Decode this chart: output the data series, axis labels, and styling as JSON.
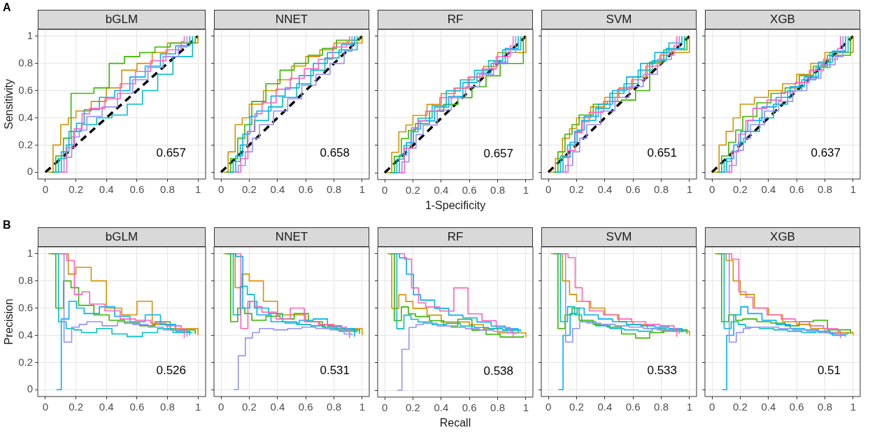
{
  "chart_data": [
    {
      "type": "step",
      "title": "bGLM",
      "ylabel": "Sensitivity",
      "annotations": [
        "A",
        "0.657"
      ],
      "xlim": [
        -0.05,
        1.05
      ],
      "ylim": [
        -0.05,
        1.05
      ],
      "xticks": [
        0,
        0.2,
        0.4,
        0.6,
        0.8,
        1
      ],
      "yticks": [
        0,
        0.2,
        0.4,
        0.6,
        0.8,
        1
      ],
      "grid": true,
      "legend": false,
      "series": [
        {
          "type": "line",
          "line_style": "dashed",
          "color": "#000000",
          "x": [
            0,
            1
          ],
          "values": [
            0,
            1
          ]
        },
        {
          "color": "#D89000",
          "x": [
            0.018,
            0.05,
            0.1,
            0.15,
            0.2,
            0.3,
            0.4,
            0.5,
            0.6,
            0.7,
            0.8,
            1
          ],
          "values": [
            0,
            0.2,
            0.35,
            0.4,
            0.45,
            0.52,
            0.62,
            0.75,
            0.8,
            0.88,
            0.95,
            1
          ]
        },
        {
          "color": "#39B600",
          "x": [
            0.036,
            0.068,
            0.118,
            0.168,
            0.218,
            0.318,
            0.418,
            0.518,
            0.618,
            0.718,
            0.818,
            0.982
          ],
          "values": [
            0,
            0.12,
            0.25,
            0.58,
            0.58,
            0.62,
            0.8,
            0.85,
            0.88,
            0.92,
            0.95,
            1
          ]
        },
        {
          "color": "#00BFC4",
          "x": [
            0.054,
            0.086,
            0.136,
            0.186,
            0.236,
            0.336,
            0.436,
            0.536,
            0.636,
            0.736,
            0.836,
            0.964
          ],
          "values": [
            0,
            0.1,
            0.2,
            0.3,
            0.35,
            0.4,
            0.42,
            0.5,
            0.6,
            0.72,
            0.85,
            1
          ]
        },
        {
          "color": "#00B0F6",
          "x": [
            0.072,
            0.104,
            0.154,
            0.204,
            0.254,
            0.354,
            0.454,
            0.554,
            0.654,
            0.754,
            0.854,
            0.946
          ],
          "values": [
            0,
            0.15,
            0.3,
            0.36,
            0.46,
            0.55,
            0.6,
            0.7,
            0.78,
            0.87,
            0.93,
            1
          ]
        },
        {
          "color": "#9590FF",
          "x": [
            0.09,
            0.122,
            0.172,
            0.222,
            0.272,
            0.372,
            0.472,
            0.572,
            0.672,
            0.772,
            0.872,
            0.928
          ],
          "values": [
            0,
            0.11,
            0.26,
            0.31,
            0.41,
            0.48,
            0.58,
            0.68,
            0.77,
            0.85,
            0.92,
            1
          ]
        },
        {
          "color": "#FF62BC",
          "x": [
            0.108,
            0.14,
            0.19,
            0.24,
            0.29,
            0.39,
            0.49,
            0.59,
            0.69,
            0.79,
            0.89,
            0.91
          ],
          "values": [
            0,
            0.18,
            0.32,
            0.43,
            0.47,
            0.54,
            0.65,
            0.74,
            0.82,
            0.9,
            0.96,
            1
          ]
        }
      ]
    },
    {
      "type": "step",
      "title": "NNET",
      "tick_labels": "x",
      "annotations": [
        "0.658"
      ],
      "xlim": [
        -0.05,
        1.05
      ],
      "ylim": [
        -0.05,
        1.05
      ],
      "xticks": [
        0,
        0.2,
        0.4,
        0.6,
        0.8,
        1
      ],
      "yticks": [
        0,
        0.2,
        0.4,
        0.6,
        0.8,
        1
      ],
      "grid": true,
      "legend": false,
      "series": [
        {
          "type": "line",
          "line_style": "dashed",
          "color": "#000000",
          "x": [
            0,
            1
          ],
          "values": [
            0,
            1
          ]
        },
        {
          "color": "#D89000",
          "x": [
            0.018,
            0.05,
            0.1,
            0.15,
            0.2,
            0.3,
            0.4,
            0.5,
            0.6,
            0.7,
            0.8,
            1
          ],
          "values": [
            0,
            0.15,
            0.35,
            0.4,
            0.5,
            0.6,
            0.68,
            0.78,
            0.85,
            0.9,
            0.95,
            1
          ]
        },
        {
          "color": "#39B600",
          "x": [
            0.036,
            0.068,
            0.118,
            0.168,
            0.218,
            0.318,
            0.418,
            0.518,
            0.618,
            0.718,
            0.818,
            0.982
          ],
          "values": [
            0,
            0.1,
            0.25,
            0.35,
            0.52,
            0.65,
            0.75,
            0.8,
            0.86,
            0.91,
            0.97,
            1
          ]
        },
        {
          "color": "#00BFC4",
          "x": [
            0.054,
            0.086,
            0.136,
            0.186,
            0.236,
            0.336,
            0.436,
            0.536,
            0.636,
            0.736,
            0.836,
            0.964
          ],
          "values": [
            0,
            0.08,
            0.2,
            0.3,
            0.38,
            0.48,
            0.55,
            0.65,
            0.75,
            0.84,
            0.9,
            1
          ]
        },
        {
          "color": "#00B0F6",
          "x": [
            0.072,
            0.104,
            0.154,
            0.204,
            0.254,
            0.354,
            0.454,
            0.554,
            0.654,
            0.754,
            0.854,
            0.946
          ],
          "values": [
            0,
            0.12,
            0.28,
            0.41,
            0.45,
            0.56,
            0.62,
            0.71,
            0.8,
            0.88,
            0.94,
            1
          ]
        },
        {
          "color": "#9590FF",
          "x": [
            0.09,
            0.122,
            0.172,
            0.222,
            0.272,
            0.372,
            0.472,
            0.572,
            0.672,
            0.772,
            0.872,
            0.928
          ],
          "values": [
            0,
            0.05,
            0.15,
            0.25,
            0.35,
            0.45,
            0.54,
            0.64,
            0.72,
            0.8,
            0.89,
            1
          ]
        },
        {
          "color": "#FF62BC",
          "x": [
            0.108,
            0.14,
            0.19,
            0.24,
            0.29,
            0.39,
            0.49,
            0.59,
            0.69,
            0.79,
            0.89,
            0.91
          ],
          "values": [
            0,
            0.1,
            0.3,
            0.43,
            0.51,
            0.61,
            0.69,
            0.76,
            0.83,
            0.92,
            0.96,
            1
          ]
        }
      ]
    },
    {
      "type": "step",
      "title": "RF",
      "tick_labels": "x",
      "xlabel": "1-Specificity",
      "annotations": [
        "0.657"
      ],
      "xlim": [
        -0.05,
        1.05
      ],
      "ylim": [
        -0.05,
        1.05
      ],
      "xticks": [
        0,
        0.2,
        0.4,
        0.6,
        0.8,
        1
      ],
      "yticks": [
        0,
        0.2,
        0.4,
        0.6,
        0.8,
        1
      ],
      "grid": true,
      "legend": false,
      "series": [
        {
          "type": "line",
          "line_style": "dashed",
          "color": "#000000",
          "x": [
            0,
            1
          ],
          "values": [
            0,
            1
          ]
        },
        {
          "color": "#D89000",
          "x": [
            0.018,
            0.05,
            0.1,
            0.15,
            0.2,
            0.3,
            0.4,
            0.5,
            0.6,
            0.7,
            0.8,
            1
          ],
          "values": [
            0,
            0.15,
            0.3,
            0.35,
            0.42,
            0.5,
            0.58,
            0.62,
            0.7,
            0.78,
            0.88,
            1
          ]
        },
        {
          "color": "#39B600",
          "x": [
            0.036,
            0.068,
            0.118,
            0.168,
            0.218,
            0.318,
            0.418,
            0.518,
            0.618,
            0.718,
            0.818,
            0.982
          ],
          "values": [
            0,
            0.12,
            0.25,
            0.31,
            0.36,
            0.45,
            0.5,
            0.55,
            0.63,
            0.71,
            0.8,
            1
          ]
        },
        {
          "color": "#00BFC4",
          "x": [
            0.054,
            0.086,
            0.136,
            0.186,
            0.236,
            0.336,
            0.436,
            0.536,
            0.636,
            0.736,
            0.836,
            0.964
          ],
          "values": [
            0,
            0.1,
            0.2,
            0.3,
            0.4,
            0.49,
            0.6,
            0.68,
            0.75,
            0.82,
            0.9,
            1
          ]
        },
        {
          "color": "#00B0F6",
          "x": [
            0.072,
            0.104,
            0.154,
            0.204,
            0.254,
            0.354,
            0.454,
            0.554,
            0.654,
            0.754,
            0.854,
            0.946
          ],
          "values": [
            0,
            0.13,
            0.22,
            0.32,
            0.38,
            0.48,
            0.56,
            0.66,
            0.73,
            0.8,
            0.91,
            1
          ]
        },
        {
          "color": "#9590FF",
          "x": [
            0.09,
            0.122,
            0.172,
            0.222,
            0.272,
            0.372,
            0.472,
            0.572,
            0.672,
            0.772,
            0.872,
            0.928
          ],
          "values": [
            0,
            0.08,
            0.18,
            0.28,
            0.35,
            0.46,
            0.55,
            0.63,
            0.72,
            0.81,
            0.88,
            1
          ]
        },
        {
          "color": "#FF62BC",
          "x": [
            0.108,
            0.14,
            0.19,
            0.24,
            0.29,
            0.39,
            0.49,
            0.59,
            0.69,
            0.79,
            0.89,
            0.91
          ],
          "values": [
            0,
            0.18,
            0.33,
            0.38,
            0.45,
            0.55,
            0.62,
            0.7,
            0.76,
            0.85,
            0.93,
            1
          ]
        }
      ]
    },
    {
      "type": "step",
      "title": "SVM",
      "tick_labels": "x",
      "annotations": [
        "0.651"
      ],
      "xlim": [
        -0.05,
        1.05
      ],
      "ylim": [
        -0.05,
        1.05
      ],
      "xticks": [
        0,
        0.2,
        0.4,
        0.6,
        0.8,
        1
      ],
      "yticks": [
        0,
        0.2,
        0.4,
        0.6,
        0.8,
        1
      ],
      "grid": true,
      "legend": false,
      "series": [
        {
          "type": "line",
          "line_style": "dashed",
          "color": "#000000",
          "x": [
            0,
            1
          ],
          "values": [
            0,
            1
          ]
        },
        {
          "color": "#D89000",
          "x": [
            0.018,
            0.05,
            0.1,
            0.15,
            0.2,
            0.3,
            0.4,
            0.5,
            0.6,
            0.7,
            0.8,
            1
          ],
          "values": [
            0,
            0.1,
            0.25,
            0.32,
            0.4,
            0.48,
            0.55,
            0.62,
            0.7,
            0.8,
            0.88,
            1
          ]
        },
        {
          "color": "#39B600",
          "x": [
            0.036,
            0.068,
            0.118,
            0.168,
            0.218,
            0.318,
            0.418,
            0.518,
            0.618,
            0.718,
            0.818,
            0.982
          ],
          "values": [
            0,
            0.15,
            0.28,
            0.35,
            0.42,
            0.5,
            0.52,
            0.53,
            0.6,
            0.81,
            0.9,
            1
          ]
        },
        {
          "color": "#00BFC4",
          "x": [
            0.054,
            0.086,
            0.136,
            0.186,
            0.236,
            0.336,
            0.436,
            0.536,
            0.636,
            0.736,
            0.836,
            0.964
          ],
          "values": [
            0,
            0.12,
            0.2,
            0.3,
            0.38,
            0.47,
            0.58,
            0.65,
            0.75,
            0.82,
            0.91,
            1
          ]
        },
        {
          "color": "#00B0F6",
          "x": [
            0.072,
            0.104,
            0.154,
            0.204,
            0.254,
            0.354,
            0.454,
            0.554,
            0.654,
            0.754,
            0.854,
            0.946
          ],
          "values": [
            0,
            0.11,
            0.22,
            0.31,
            0.41,
            0.5,
            0.6,
            0.7,
            0.8,
            0.88,
            0.95,
            1
          ]
        },
        {
          "color": "#9590FF",
          "x": [
            0.09,
            0.122,
            0.172,
            0.222,
            0.272,
            0.372,
            0.472,
            0.572,
            0.672,
            0.772,
            0.872,
            0.928
          ],
          "values": [
            0,
            0.05,
            0.15,
            0.25,
            0.35,
            0.45,
            0.55,
            0.63,
            0.72,
            0.83,
            0.9,
            1
          ]
        },
        {
          "color": "#FF62BC",
          "x": [
            0.108,
            0.14,
            0.19,
            0.24,
            0.29,
            0.39,
            0.49,
            0.59,
            0.69,
            0.79,
            0.89,
            0.91
          ],
          "values": [
            0,
            0.16,
            0.29,
            0.37,
            0.44,
            0.52,
            0.61,
            0.68,
            0.78,
            0.86,
            0.93,
            1
          ]
        }
      ]
    },
    {
      "type": "step",
      "title": "XGB",
      "tick_labels": "x",
      "annotations": [
        "0.637"
      ],
      "xlim": [
        -0.05,
        1.05
      ],
      "ylim": [
        -0.05,
        1.05
      ],
      "xticks": [
        0,
        0.2,
        0.4,
        0.6,
        0.8,
        1
      ],
      "yticks": [
        0,
        0.2,
        0.4,
        0.6,
        0.8,
        1
      ],
      "grid": true,
      "legend": false,
      "series": [
        {
          "type": "line",
          "line_style": "dashed",
          "color": "#000000",
          "x": [
            0,
            1
          ],
          "values": [
            0,
            1
          ]
        },
        {
          "color": "#D89000",
          "x": [
            0.018,
            0.05,
            0.1,
            0.15,
            0.2,
            0.3,
            0.4,
            0.5,
            0.6,
            0.7,
            0.8,
            1
          ],
          "values": [
            0,
            0.2,
            0.3,
            0.4,
            0.5,
            0.55,
            0.6,
            0.65,
            0.72,
            0.8,
            0.88,
            1
          ]
        },
        {
          "color": "#39B600",
          "x": [
            0.036,
            0.068,
            0.118,
            0.168,
            0.218,
            0.318,
            0.418,
            0.518,
            0.618,
            0.718,
            0.818,
            0.982
          ],
          "values": [
            0,
            0.12,
            0.22,
            0.31,
            0.41,
            0.51,
            0.58,
            0.62,
            0.71,
            0.78,
            0.86,
            1
          ]
        },
        {
          "color": "#00BFC4",
          "x": [
            0.054,
            0.086,
            0.136,
            0.186,
            0.236,
            0.336,
            0.436,
            0.536,
            0.636,
            0.736,
            0.836,
            0.964
          ],
          "values": [
            0,
            0.08,
            0.15,
            0.22,
            0.3,
            0.4,
            0.5,
            0.6,
            0.68,
            0.77,
            0.88,
            1
          ]
        },
        {
          "color": "#00B0F6",
          "x": [
            0.072,
            0.104,
            0.154,
            0.204,
            0.254,
            0.354,
            0.454,
            0.554,
            0.654,
            0.754,
            0.854,
            0.946
          ],
          "values": [
            0,
            0.1,
            0.2,
            0.3,
            0.38,
            0.48,
            0.55,
            0.63,
            0.7,
            0.81,
            0.89,
            1
          ]
        },
        {
          "color": "#9590FF",
          "x": [
            0.09,
            0.122,
            0.172,
            0.222,
            0.272,
            0.372,
            0.472,
            0.572,
            0.672,
            0.772,
            0.872,
            0.928
          ],
          "values": [
            0,
            0.05,
            0.16,
            0.25,
            0.35,
            0.45,
            0.52,
            0.6,
            0.69,
            0.79,
            0.85,
            1
          ]
        },
        {
          "color": "#FF62BC",
          "x": [
            0.108,
            0.14,
            0.19,
            0.24,
            0.29,
            0.39,
            0.49,
            0.59,
            0.69,
            0.79,
            0.89,
            0.91
          ],
          "values": [
            0,
            0.15,
            0.28,
            0.38,
            0.47,
            0.53,
            0.59,
            0.66,
            0.75,
            0.83,
            0.91,
            1
          ]
        }
      ]
    },
    {
      "type": "step",
      "title": "bGLM",
      "ylabel": "Precision",
      "annotations": [
        "B",
        "0.526"
      ],
      "xlim": [
        -0.05,
        1.05
      ],
      "ylim": [
        -0.05,
        1.05
      ],
      "xticks": [
        0,
        0.2,
        0.4,
        0.6,
        0.8,
        1
      ],
      "yticks": [
        0,
        0.2,
        0.4,
        0.6,
        0.8,
        1
      ],
      "grid": true,
      "legend": false,
      "series": [
        {
          "color": "#D89000",
          "x": [
            0.018,
            0.05,
            0.1,
            0.15,
            0.2,
            0.3,
            0.4,
            0.5,
            0.6,
            0.7,
            0.8,
            1
          ],
          "values": [
            1,
            1,
            1,
            0.85,
            0.9,
            0.8,
            0.6,
            0.55,
            0.65,
            0.48,
            0.45,
            0.4
          ]
        },
        {
          "color": "#39B600",
          "x": [
            0.036,
            0.068,
            0.118,
            0.168,
            0.218,
            0.318,
            0.418,
            0.518,
            0.618,
            0.718,
            0.818,
            0.982
          ],
          "values": [
            1,
            0.6,
            0.8,
            0.75,
            0.62,
            0.55,
            0.51,
            0.49,
            0.47,
            0.5,
            0.44,
            0.41
          ]
        },
        {
          "color": "#00BFC4",
          "x": [
            0.054,
            0.086,
            0.136,
            0.186,
            0.236,
            0.336,
            0.436,
            0.536,
            0.636,
            0.736,
            0.836,
            0.964
          ],
          "values": [
            1,
            0.5,
            0.45,
            0.44,
            0.42,
            0.45,
            0.41,
            0.39,
            0.42,
            0.45,
            0.42,
            0.42
          ]
        },
        {
          "color": "#00B0F6",
          "x": [
            0.072,
            0.104,
            0.154,
            0.204,
            0.254,
            0.354,
            0.454,
            0.554,
            0.654,
            0.754,
            0.854,
            0.946
          ],
          "values": [
            0,
            0.52,
            0.65,
            0.6,
            0.56,
            0.61,
            0.54,
            0.5,
            0.55,
            0.48,
            0.43,
            0.4
          ]
        },
        {
          "color": "#9590FF",
          "x": [
            0.09,
            0.122,
            0.172,
            0.222,
            0.272,
            0.372,
            0.472,
            0.572,
            0.672,
            0.772,
            0.872,
            0.928
          ],
          "values": [
            1,
            0.35,
            0.46,
            0.48,
            0.5,
            0.47,
            0.5,
            0.48,
            0.46,
            0.44,
            0.43,
            0.39
          ]
        },
        {
          "color": "#FF62BC",
          "x": [
            0.108,
            0.14,
            0.19,
            0.24,
            0.29,
            0.39,
            0.49,
            0.59,
            0.69,
            0.79,
            0.89,
            0.91
          ],
          "values": [
            1,
            0.95,
            0.7,
            0.72,
            0.63,
            0.58,
            0.52,
            0.51,
            0.49,
            0.47,
            0.45,
            0.38
          ]
        }
      ]
    },
    {
      "type": "step",
      "title": "NNET",
      "tick_labels": "x",
      "annotations": [
        "0.531"
      ],
      "xlim": [
        -0.05,
        1.05
      ],
      "ylim": [
        -0.05,
        1.05
      ],
      "xticks": [
        0,
        0.2,
        0.4,
        0.6,
        0.8,
        1
      ],
      "yticks": [
        0,
        0.2,
        0.4,
        0.6,
        0.8,
        1
      ],
      "grid": true,
      "legend": false,
      "series": [
        {
          "color": "#D89000",
          "x": [
            0.018,
            0.05,
            0.1,
            0.15,
            0.2,
            0.3,
            0.4,
            0.5,
            0.6,
            0.7,
            0.8,
            1
          ],
          "values": [
            1,
            1,
            0.75,
            0.85,
            0.8,
            0.65,
            0.55,
            0.55,
            0.5,
            0.48,
            0.45,
            0.4
          ]
        },
        {
          "color": "#39B600",
          "x": [
            0.036,
            0.068,
            0.118,
            0.168,
            0.218,
            0.318,
            0.418,
            0.518,
            0.618,
            0.718,
            0.818,
            0.982
          ],
          "values": [
            1,
            0.5,
            0.6,
            0.56,
            0.51,
            0.54,
            0.52,
            0.56,
            0.5,
            0.46,
            0.44,
            0.41
          ]
        },
        {
          "color": "#00BFC4",
          "x": [
            0.054,
            0.086,
            0.136,
            0.186,
            0.236,
            0.336,
            0.436,
            0.536,
            0.636,
            0.736,
            0.836,
            0.964
          ],
          "values": [
            1,
            0.55,
            0.76,
            0.7,
            0.6,
            0.56,
            0.5,
            0.48,
            0.47,
            0.45,
            0.43,
            0.42
          ]
        },
        {
          "color": "#00B0F6",
          "x": [
            0.072,
            0.104,
            0.154,
            0.204,
            0.254,
            0.354,
            0.454,
            0.554,
            0.654,
            0.754,
            0.854,
            0.946
          ],
          "values": [
            1,
            0.98,
            0.6,
            0.65,
            0.55,
            0.5,
            0.49,
            0.51,
            0.52,
            0.47,
            0.45,
            0.39
          ]
        },
        {
          "color": "#9590FF",
          "x": [
            0.09,
            0.122,
            0.172,
            0.222,
            0.272,
            0.372,
            0.472,
            0.572,
            0.672,
            0.772,
            0.872,
            0.928
          ],
          "values": [
            0,
            0.25,
            0.38,
            0.42,
            0.45,
            0.44,
            0.45,
            0.46,
            0.45,
            0.44,
            0.41,
            0.4
          ]
        },
        {
          "color": "#FF62BC",
          "x": [
            0.108,
            0.14,
            0.19,
            0.24,
            0.29,
            0.39,
            0.49,
            0.59,
            0.69,
            0.79,
            0.89,
            0.91
          ],
          "values": [
            1,
            0.45,
            0.65,
            0.61,
            0.57,
            0.52,
            0.6,
            0.5,
            0.48,
            0.46,
            0.44,
            0.38
          ]
        }
      ]
    },
    {
      "type": "step",
      "title": "RF",
      "tick_labels": "x",
      "xlabel": "Recall",
      "annotations": [
        "0.538"
      ],
      "xlim": [
        -0.05,
        1.05
      ],
      "ylim": [
        -0.05,
        1.05
      ],
      "xticks": [
        0,
        0.2,
        0.4,
        0.6,
        0.8,
        1
      ],
      "yticks": [
        0,
        0.2,
        0.4,
        0.6,
        0.8,
        1
      ],
      "grid": true,
      "legend": false,
      "series": [
        {
          "color": "#D89000",
          "x": [
            0.018,
            0.05,
            0.1,
            0.15,
            0.2,
            0.3,
            0.4,
            0.5,
            0.6,
            0.7,
            0.8,
            1
          ],
          "values": [
            1,
            0.6,
            0.7,
            0.65,
            0.6,
            0.55,
            0.5,
            0.5,
            0.48,
            0.45,
            0.42,
            0.39
          ]
        },
        {
          "color": "#39B600",
          "x": [
            0.036,
            0.068,
            0.118,
            0.168,
            0.218,
            0.318,
            0.418,
            0.518,
            0.618,
            0.718,
            0.818,
            0.982
          ],
          "values": [
            1,
            0.51,
            0.61,
            0.56,
            0.54,
            0.51,
            0.47,
            0.52,
            0.44,
            0.41,
            0.39,
            0.4
          ]
        },
        {
          "color": "#00BFC4",
          "x": [
            0.054,
            0.086,
            0.136,
            0.186,
            0.236,
            0.336,
            0.436,
            0.536,
            0.636,
            0.736,
            0.836,
            0.964
          ],
          "values": [
            1,
            0.45,
            0.55,
            0.52,
            0.5,
            0.48,
            0.49,
            0.47,
            0.46,
            0.45,
            0.44,
            0.43
          ]
        },
        {
          "color": "#00B0F6",
          "x": [
            0.072,
            0.104,
            0.154,
            0.204,
            0.254,
            0.354,
            0.454,
            0.554,
            0.654,
            0.754,
            0.854,
            0.946
          ],
          "values": [
            1,
            0.97,
            0.85,
            0.7,
            0.66,
            0.6,
            0.55,
            0.53,
            0.5,
            0.47,
            0.45,
            0.42
          ]
        },
        {
          "color": "#9590FF",
          "x": [
            0.09,
            0.122,
            0.172,
            0.222,
            0.272,
            0.372,
            0.472,
            0.572,
            0.672,
            0.772,
            0.872,
            0.928
          ],
          "values": [
            0,
            0.3,
            0.46,
            0.48,
            0.49,
            0.47,
            0.46,
            0.45,
            0.44,
            0.43,
            0.42,
            0.41
          ]
        },
        {
          "color": "#FF62BC",
          "x": [
            0.108,
            0.14,
            0.19,
            0.24,
            0.29,
            0.39,
            0.49,
            0.59,
            0.69,
            0.79,
            0.89,
            0.91
          ],
          "values": [
            1,
            0.96,
            0.75,
            0.64,
            0.61,
            0.58,
            0.75,
            0.56,
            0.51,
            0.46,
            0.43,
            0.38
          ]
        }
      ]
    },
    {
      "type": "step",
      "title": "SVM",
      "tick_labels": "x",
      "annotations": [
        "0.533"
      ],
      "xlim": [
        -0.05,
        1.05
      ],
      "ylim": [
        -0.05,
        1.05
      ],
      "xticks": [
        0,
        0.2,
        0.4,
        0.6,
        0.8,
        1
      ],
      "yticks": [
        0,
        0.2,
        0.4,
        0.6,
        0.8,
        1
      ],
      "grid": true,
      "legend": false,
      "series": [
        {
          "color": "#D89000",
          "x": [
            0.018,
            0.05,
            0.1,
            0.15,
            0.2,
            0.3,
            0.4,
            0.5,
            0.6,
            0.7,
            0.8,
            1
          ],
          "values": [
            1,
            1,
            0.8,
            0.7,
            0.65,
            0.6,
            0.55,
            0.5,
            0.48,
            0.45,
            0.43,
            0.4
          ]
        },
        {
          "color": "#39B600",
          "x": [
            0.036,
            0.068,
            0.118,
            0.168,
            0.218,
            0.318,
            0.418,
            0.518,
            0.618,
            0.718,
            0.818,
            0.982
          ],
          "values": [
            1,
            0.45,
            0.55,
            0.6,
            0.51,
            0.48,
            0.46,
            0.41,
            0.38,
            0.42,
            0.44,
            0.41
          ]
        },
        {
          "color": "#00BFC4",
          "x": [
            0.054,
            0.086,
            0.136,
            0.186,
            0.236,
            0.336,
            0.436,
            0.536,
            0.636,
            0.736,
            0.836,
            0.964
          ],
          "values": [
            1,
            0.5,
            0.61,
            0.55,
            0.5,
            0.47,
            0.45,
            0.44,
            0.43,
            0.45,
            0.44,
            0.43
          ]
        },
        {
          "color": "#00B0F6",
          "x": [
            0.072,
            0.104,
            0.154,
            0.204,
            0.254,
            0.354,
            0.454,
            0.554,
            0.654,
            0.754,
            0.854,
            0.946
          ],
          "values": [
            0,
            0.4,
            0.56,
            0.6,
            0.55,
            0.52,
            0.5,
            0.48,
            0.47,
            0.46,
            0.45,
            0.42
          ]
        },
        {
          "color": "#9590FF",
          "x": [
            0.09,
            0.122,
            0.172,
            0.222,
            0.272,
            0.372,
            0.472,
            0.572,
            0.672,
            0.772,
            0.872,
            0.928
          ],
          "values": [
            1,
            0.35,
            0.45,
            0.5,
            0.49,
            0.48,
            0.47,
            0.46,
            0.45,
            0.44,
            0.43,
            0.41
          ]
        },
        {
          "color": "#FF62BC",
          "x": [
            0.108,
            0.14,
            0.19,
            0.24,
            0.29,
            0.39,
            0.49,
            0.59,
            0.69,
            0.79,
            0.89,
            0.91
          ],
          "values": [
            1,
            0.97,
            0.75,
            0.65,
            0.58,
            0.55,
            0.52,
            0.5,
            0.48,
            0.47,
            0.45,
            0.39
          ]
        }
      ]
    },
    {
      "type": "step",
      "title": "XGB",
      "tick_labels": "x",
      "annotations": [
        "0.51"
      ],
      "xlim": [
        -0.05,
        1.05
      ],
      "ylim": [
        -0.05,
        1.05
      ],
      "xticks": [
        0,
        0.2,
        0.4,
        0.6,
        0.8,
        1
      ],
      "yticks": [
        0,
        0.2,
        0.4,
        0.6,
        0.8,
        1
      ],
      "grid": true,
      "legend": false,
      "series": [
        {
          "color": "#D89000",
          "x": [
            0.018,
            0.05,
            0.1,
            0.15,
            0.2,
            0.3,
            0.4,
            0.5,
            0.6,
            0.7,
            0.8,
            1
          ],
          "values": [
            1,
            1,
            0.95,
            0.8,
            0.7,
            0.6,
            0.55,
            0.5,
            0.48,
            0.45,
            0.42,
            0.4
          ]
        },
        {
          "color": "#39B600",
          "x": [
            0.036,
            0.068,
            0.118,
            0.168,
            0.218,
            0.318,
            0.418,
            0.518,
            0.618,
            0.718,
            0.818,
            0.982
          ],
          "values": [
            1,
            0.5,
            0.55,
            0.51,
            0.52,
            0.5,
            0.49,
            0.47,
            0.5,
            0.51,
            0.44,
            0.41
          ]
        },
        {
          "color": "#00BFC4",
          "x": [
            0.054,
            0.086,
            0.136,
            0.186,
            0.236,
            0.336,
            0.436,
            0.536,
            0.636,
            0.736,
            0.836,
            0.964
          ],
          "values": [
            1,
            0.45,
            0.5,
            0.48,
            0.46,
            0.45,
            0.44,
            0.43,
            0.42,
            0.43,
            0.41,
            0.42
          ]
        },
        {
          "color": "#00B0F6",
          "x": [
            0.072,
            0.104,
            0.154,
            0.204,
            0.254,
            0.354,
            0.454,
            0.554,
            0.654,
            0.754,
            0.854,
            0.946
          ],
          "values": [
            0,
            0.4,
            0.55,
            0.61,
            0.56,
            0.51,
            0.48,
            0.45,
            0.44,
            0.42,
            0.4,
            0.39
          ]
        },
        {
          "color": "#9590FF",
          "x": [
            0.09,
            0.122,
            0.172,
            0.222,
            0.272,
            0.372,
            0.472,
            0.572,
            0.672,
            0.772,
            0.872,
            0.928
          ],
          "values": [
            1,
            0.35,
            0.42,
            0.45,
            0.46,
            0.46,
            0.45,
            0.44,
            0.43,
            0.42,
            0.41,
            0.4
          ]
        },
        {
          "color": "#FF62BC",
          "x": [
            0.108,
            0.14,
            0.19,
            0.24,
            0.29,
            0.39,
            0.49,
            0.59,
            0.69,
            0.79,
            0.89,
            0.91
          ],
          "values": [
            1,
            0.96,
            0.72,
            0.68,
            0.6,
            0.55,
            0.52,
            0.5,
            0.47,
            0.45,
            0.43,
            0.38
          ]
        }
      ]
    }
  ]
}
